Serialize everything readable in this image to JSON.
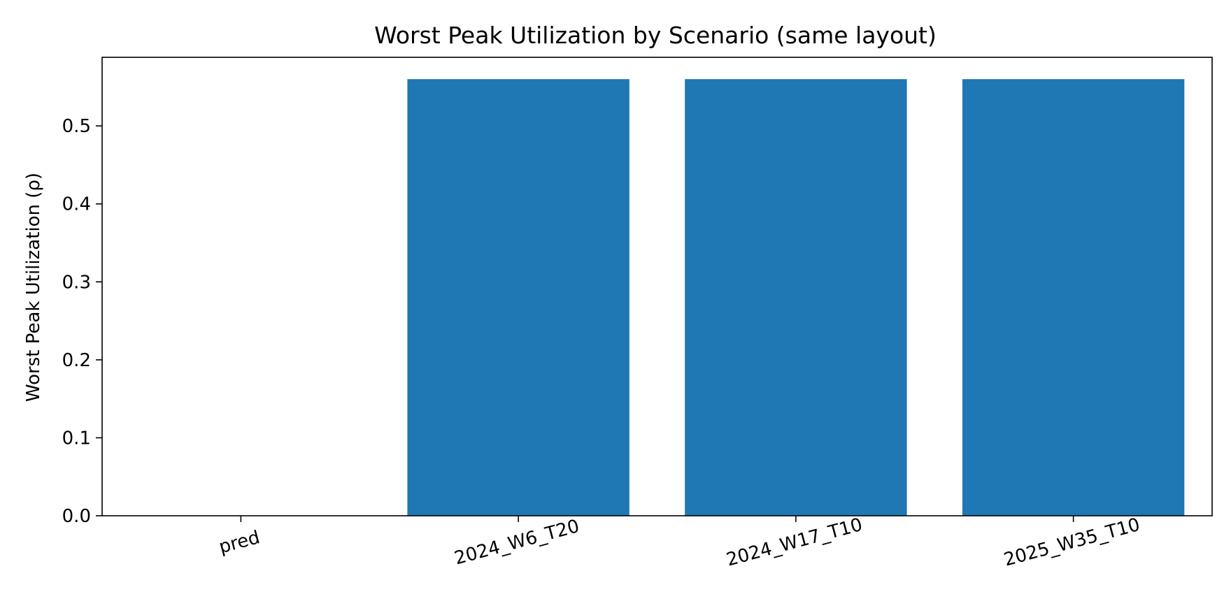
{
  "chart_data": {
    "type": "bar",
    "title": "Worst Peak Utilization by Scenario (same layout)",
    "xlabel": "",
    "ylabel": "Worst Peak Utilization (ρ)",
    "categories": [
      "pred",
      "2024_W6_T20",
      "2024_W17_T10",
      "2025_W35_T10"
    ],
    "values": [
      0.0,
      0.56,
      0.56,
      0.56
    ],
    "ylim": [
      0,
      0.588
    ],
    "yticks": [
      "0.0",
      "0.1",
      "0.2",
      "0.3",
      "0.4",
      "0.5"
    ],
    "bar_color": "#1f77b4",
    "grid": false,
    "legend": "none"
  }
}
